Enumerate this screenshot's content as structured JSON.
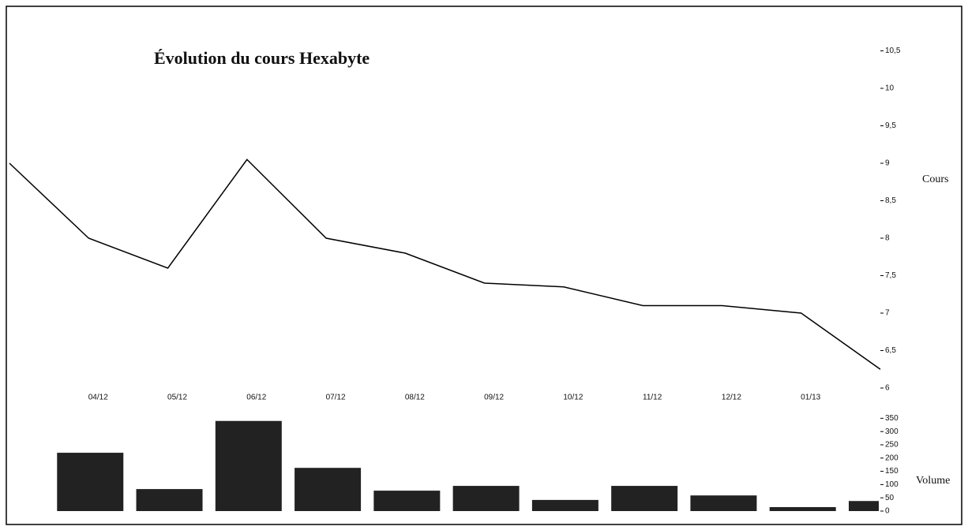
{
  "chart_data": [
    {
      "type": "line",
      "title": "Évolution du cours Hexabyte",
      "y_label": "Cours",
      "color": "#000000",
      "categories": [
        null,
        "04/12",
        "05/12",
        "06/12",
        "07/12",
        "08/12",
        "09/12",
        "10/12",
        "11/12",
        "12/12",
        "01/13",
        null
      ],
      "values": [
        9.0,
        8.0,
        7.6,
        9.05,
        8.0,
        7.8,
        7.4,
        7.35,
        7.1,
        7.1,
        7.0,
        6.25
      ],
      "ylim": [
        6,
        10.9
      ],
      "yticks": [
        6,
        {
          "value": 6.5,
          "label": "6,5"
        },
        7,
        {
          "value": 7.5,
          "label": "7,5"
        },
        8,
        {
          "value": 8.5,
          "label": "8,5"
        },
        9,
        {
          "value": 9.5,
          "label": "9,5"
        },
        10,
        {
          "value": 10.5,
          "label": "10,5"
        }
      ]
    },
    {
      "type": "bar",
      "y_label": "Volume",
      "color": "#222222",
      "values": [
        220,
        83,
        340,
        163,
        77,
        95,
        42,
        95,
        59,
        15,
        38
      ],
      "ylim": [
        0,
        360
      ],
      "yticks": [
        0,
        50,
        100,
        150,
        200,
        250,
        300,
        350
      ]
    }
  ]
}
